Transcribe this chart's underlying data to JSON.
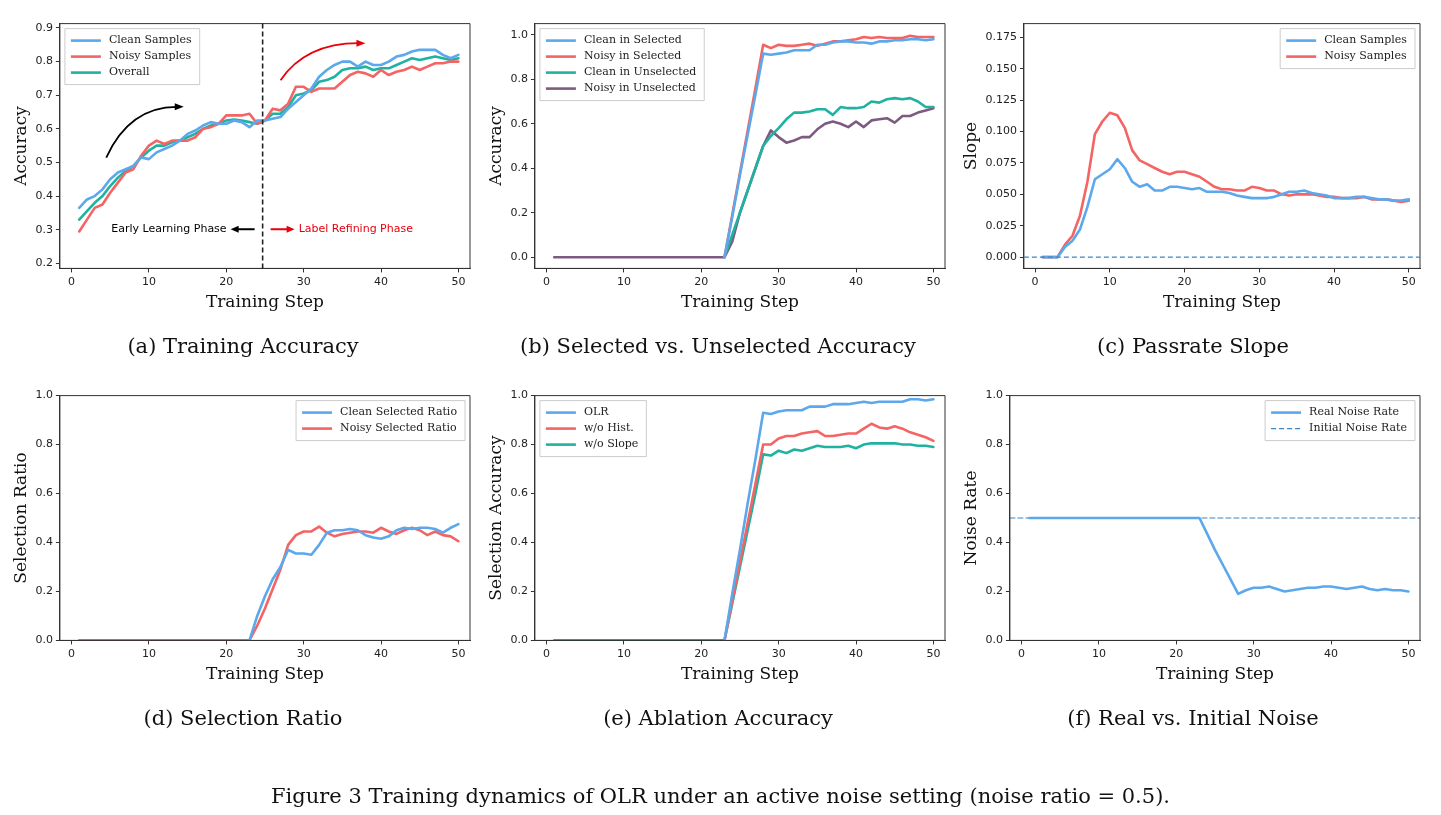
{
  "chart_data": [
    {
      "type": "line",
      "title": "(a) Training Accuracy",
      "xlabel": "Training Step",
      "ylabel": "Accuracy",
      "x": [
        1,
        2,
        3,
        4,
        5,
        6,
        7,
        8,
        9,
        10,
        11,
        12,
        13,
        14,
        15,
        16,
        17,
        18,
        19,
        20,
        21,
        22,
        23,
        24,
        25,
        26,
        27,
        28,
        29,
        30,
        31,
        32,
        33,
        34,
        35,
        36,
        37,
        38,
        39,
        40,
        41,
        42,
        43,
        44,
        45,
        46,
        47,
        48,
        49,
        50
      ],
      "xlim": [
        -1.5,
        51.5
      ],
      "xticks": [
        0,
        10,
        20,
        30,
        40,
        50
      ],
      "ylim": [
        0.185,
        0.913
      ],
      "yticks": [
        0.2,
        0.3,
        0.4,
        0.5,
        0.6,
        0.7,
        0.8,
        0.9
      ],
      "grid": false,
      "legend": "top left",
      "marker": "none",
      "line_style": "solid",
      "series": [
        {
          "name": "Clean Samples",
          "color": "#5ba8ec",
          "values": [
            0.365,
            0.39,
            0.4,
            0.42,
            0.45,
            0.47,
            0.48,
            0.49,
            0.515,
            0.51,
            0.53,
            0.54,
            0.55,
            0.565,
            0.585,
            0.595,
            0.61,
            0.62,
            0.615,
            0.615,
            0.625,
            0.62,
            0.605,
            0.625,
            0.625,
            0.63,
            0.635,
            0.66,
            0.68,
            0.7,
            0.72,
            0.755,
            0.775,
            0.79,
            0.8,
            0.8,
            0.785,
            0.8,
            0.79,
            0.79,
            0.8,
            0.815,
            0.82,
            0.83,
            0.835,
            0.835,
            0.835,
            0.82,
            0.81,
            0.82
          ]
        },
        {
          "name": "Noisy Samples",
          "color": "#f46464",
          "values": [
            0.295,
            0.33,
            0.365,
            0.375,
            0.41,
            0.44,
            0.47,
            0.48,
            0.52,
            0.55,
            0.565,
            0.555,
            0.565,
            0.565,
            0.565,
            0.575,
            0.6,
            0.605,
            0.615,
            0.64,
            0.64,
            0.64,
            0.645,
            0.615,
            0.625,
            0.66,
            0.655,
            0.675,
            0.725,
            0.725,
            0.71,
            0.72,
            0.72,
            0.72,
            0.74,
            0.76,
            0.77,
            0.765,
            0.755,
            0.775,
            0.76,
            0.77,
            0.775,
            0.785,
            0.775,
            0.785,
            0.795,
            0.795,
            0.8,
            0.8
          ]
        },
        {
          "name": "Overall",
          "color": "#20b2a0",
          "values": [
            0.33,
            0.355,
            0.38,
            0.4,
            0.43,
            0.455,
            0.475,
            0.49,
            0.515,
            0.535,
            0.55,
            0.55,
            0.56,
            0.565,
            0.575,
            0.585,
            0.6,
            0.61,
            0.615,
            0.625,
            0.628,
            0.625,
            0.62,
            0.615,
            0.625,
            0.645,
            0.645,
            0.665,
            0.7,
            0.705,
            0.715,
            0.74,
            0.745,
            0.755,
            0.775,
            0.78,
            0.78,
            0.785,
            0.775,
            0.78,
            0.78,
            0.79,
            0.8,
            0.81,
            0.805,
            0.81,
            0.815,
            0.81,
            0.805,
            0.81
          ]
        }
      ],
      "ref_lines": [
        {
          "axis": "x",
          "value": 24.7,
          "color": "#222222",
          "line_style": "dashed"
        }
      ],
      "annotations": [
        "Early Learning Phase",
        "Label Refining Phase"
      ]
    },
    {
      "type": "line",
      "title": "(b) Selected vs. Unselected Accuracy",
      "xlabel": "Training Step",
      "ylabel": "Accuracy",
      "x": [
        1,
        2,
        3,
        4,
        5,
        6,
        7,
        8,
        9,
        10,
        11,
        12,
        13,
        14,
        15,
        16,
        17,
        18,
        19,
        20,
        21,
        22,
        23,
        24,
        25,
        26,
        27,
        28,
        29,
        30,
        31,
        32,
        33,
        34,
        35,
        36,
        37,
        38,
        39,
        40,
        41,
        42,
        43,
        44,
        45,
        46,
        47,
        48,
        49,
        50
      ],
      "xlim": [
        -1.5,
        51.5
      ],
      "xticks": [
        0,
        10,
        20,
        30,
        40,
        50
      ],
      "ylim": [
        -0.05,
        1.05
      ],
      "yticks": [
        {
          "value": 0,
          "label": "0.0"
        },
        0.2,
        0.4,
        0.6,
        0.8,
        {
          "value": 1,
          "label": "1.0"
        }
      ],
      "grid": false,
      "legend": "top left",
      "marker": "none",
      "line_style": "solid",
      "series": [
        {
          "name": "Clean in Selected",
          "color": "#5ba8ec",
          "values": [
            null,
            null,
            null,
            null,
            null,
            null,
            null,
            null,
            null,
            null,
            null,
            null,
            null,
            null,
            null,
            null,
            null,
            null,
            null,
            null,
            null,
            null,
            0,
            0.18,
            0.37,
            0.55,
            0.73,
            0.915,
            0.91,
            0.915,
            0.92,
            0.93,
            0.93,
            0.93,
            0.955,
            0.955,
            0.965,
            0.97,
            0.97,
            0.965,
            0.965,
            0.96,
            0.97,
            0.97,
            0.975,
            0.975,
            0.98,
            0.98,
            0.975,
            0.98
          ]
        },
        {
          "name": "Noisy in Selected",
          "color": "#f46464",
          "values": [
            null,
            null,
            null,
            null,
            null,
            null,
            null,
            null,
            null,
            null,
            null,
            null,
            null,
            null,
            null,
            null,
            null,
            null,
            null,
            null,
            null,
            null,
            0,
            0.19,
            0.38,
            0.57,
            0.76,
            0.955,
            0.94,
            0.955,
            0.95,
            0.95,
            0.955,
            0.96,
            0.95,
            0.96,
            0.97,
            0.97,
            0.975,
            0.98,
            0.99,
            0.985,
            0.99,
            0.985,
            0.985,
            0.985,
            0.995,
            0.99,
            0.99,
            0.99
          ]
        },
        {
          "name": "Clean in Unselected",
          "color": "#20b2a0",
          "values": [
            null,
            null,
            null,
            null,
            null,
            null,
            null,
            null,
            null,
            null,
            null,
            null,
            null,
            null,
            null,
            null,
            null,
            null,
            null,
            null,
            null,
            null,
            0,
            0.1,
            0.2,
            0.3,
            0.4,
            0.5,
            0.545,
            0.58,
            0.62,
            0.65,
            0.65,
            0.655,
            0.665,
            0.665,
            0.64,
            0.675,
            0.67,
            0.67,
            0.675,
            0.7,
            0.695,
            0.71,
            0.715,
            0.71,
            0.715,
            0.7,
            0.675,
            0.675
          ]
        },
        {
          "name": "Noisy in Unselected",
          "color": "#7d5a80",
          "values": [
            0,
            0,
            0,
            0,
            0,
            0,
            0,
            0,
            0,
            0,
            0,
            0,
            0,
            0,
            0,
            0,
            0,
            0,
            0,
            0,
            0,
            0,
            0,
            0.07,
            0.2,
            0.3,
            0.4,
            0.5,
            0.57,
            0.54,
            0.515,
            0.525,
            0.54,
            0.54,
            0.575,
            0.6,
            0.61,
            0.6,
            0.585,
            0.61,
            0.585,
            0.615,
            0.62,
            0.625,
            0.605,
            0.635,
            0.635,
            0.65,
            0.66,
            0.67
          ]
        }
      ]
    },
    {
      "type": "line",
      "title": "(c) Passrate Slope",
      "xlabel": "Training Step",
      "ylabel": "Slope",
      "x": [
        1,
        2,
        3,
        4,
        5,
        6,
        7,
        8,
        9,
        10,
        11,
        12,
        13,
        14,
        15,
        16,
        17,
        18,
        19,
        20,
        21,
        22,
        23,
        24,
        25,
        26,
        27,
        28,
        29,
        30,
        31,
        32,
        33,
        34,
        35,
        36,
        37,
        38,
        39,
        40,
        41,
        42,
        43,
        44,
        45,
        46,
        47,
        48,
        49,
        50
      ],
      "xlim": [
        -1.5,
        51.5
      ],
      "xticks": [
        0,
        10,
        20,
        30,
        40,
        50
      ],
      "ylim": [
        -0.009,
        0.186
      ],
      "yticks": [
        {
          "value": 0,
          "label": "0.000"
        },
        {
          "value": 0.025,
          "label": "0.025"
        },
        {
          "value": 0.05,
          "label": "0.050"
        },
        {
          "value": 0.075,
          "label": "0.075"
        },
        {
          "value": 0.1,
          "label": "0.100"
        },
        {
          "value": 0.125,
          "label": "0.125"
        },
        {
          "value": 0.15,
          "label": "0.150"
        },
        {
          "value": 0.175,
          "label": "0.175"
        }
      ],
      "grid": false,
      "legend": "top right",
      "marker": "none",
      "line_style": "solid",
      "series": [
        {
          "name": "Clean Samples",
          "color": "#5ba8ec",
          "values": [
            0,
            0,
            0,
            0.008,
            0.013,
            0.022,
            0.04,
            0.062,
            0.066,
            0.07,
            0.078,
            0.071,
            0.06,
            0.056,
            0.058,
            0.053,
            0.053,
            0.056,
            0.056,
            0.055,
            0.054,
            0.055,
            0.052,
            0.052,
            0.052,
            0.051,
            0.049,
            0.048,
            0.047,
            0.047,
            0.047,
            0.048,
            0.05,
            0.052,
            0.052,
            0.053,
            0.051,
            0.05,
            0.049,
            0.047,
            0.047,
            0.047,
            0.048,
            0.048,
            0.047,
            0.046,
            0.046,
            0.045,
            0.045,
            0.046
          ]
        },
        {
          "name": "Noisy Samples",
          "color": "#f46464",
          "values": [
            0,
            0,
            0,
            0.01,
            0.017,
            0.033,
            0.06,
            0.098,
            0.108,
            0.115,
            0.113,
            0.103,
            0.085,
            0.077,
            0.074,
            0.071,
            0.068,
            0.066,
            0.068,
            0.068,
            0.066,
            0.064,
            0.06,
            0.056,
            0.054,
            0.054,
            0.053,
            0.053,
            0.056,
            0.055,
            0.053,
            0.053,
            0.05,
            0.049,
            0.05,
            0.05,
            0.05,
            0.049,
            0.048,
            0.048,
            0.047,
            0.047,
            0.047,
            0.048,
            0.046,
            0.046,
            0.046,
            0.045,
            0.044,
            0.045
          ]
        }
      ],
      "ref_lines": [
        {
          "axis": "y",
          "value": 0,
          "color": "#3d85c6",
          "line_style": "dashed"
        }
      ]
    },
    {
      "type": "line",
      "title": "(d) Selection Ratio",
      "xlabel": "Training Step",
      "ylabel": "Selection Ratio",
      "x": [
        1,
        2,
        3,
        4,
        5,
        6,
        7,
        8,
        9,
        10,
        11,
        12,
        13,
        14,
        15,
        16,
        17,
        18,
        19,
        20,
        21,
        22,
        23,
        24,
        25,
        26,
        27,
        28,
        29,
        30,
        31,
        32,
        33,
        34,
        35,
        36,
        37,
        38,
        39,
        40,
        41,
        42,
        43,
        44,
        45,
        46,
        47,
        48,
        49,
        50
      ],
      "xlim": [
        -1.5,
        51.5
      ],
      "xticks": [
        0,
        10,
        20,
        30,
        40,
        50
      ],
      "ylim": [
        0,
        1
      ],
      "yticks": [
        {
          "value": 0,
          "label": "0.0"
        },
        0.2,
        0.4,
        0.6,
        0.8,
        {
          "value": 1,
          "label": "1.0"
        }
      ],
      "grid": false,
      "legend": "top right",
      "marker": "none",
      "line_style": "solid",
      "series": [
        {
          "name": "Clean Selected Ratio",
          "color": "#5ba8ec",
          "values": [
            null,
            null,
            null,
            null,
            null,
            null,
            null,
            null,
            null,
            null,
            null,
            null,
            null,
            null,
            null,
            null,
            null,
            null,
            null,
            null,
            null,
            null,
            0,
            0.1,
            0.18,
            0.25,
            0.3,
            0.37,
            0.355,
            0.355,
            0.35,
            0.39,
            0.44,
            0.45,
            0.45,
            0.455,
            0.45,
            0.43,
            0.42,
            0.415,
            0.425,
            0.45,
            0.46,
            0.455,
            0.46,
            0.46,
            0.455,
            0.44,
            0.46,
            0.475
          ]
        },
        {
          "name": "Noisy Selected Ratio",
          "color": "#f46464",
          "values": [
            0,
            0,
            0,
            0,
            0,
            0,
            0,
            0,
            0,
            0,
            0,
            0,
            0,
            0,
            0,
            0,
            0,
            0,
            0,
            0,
            0,
            0,
            0,
            0.06,
            0.13,
            0.21,
            0.29,
            0.39,
            0.43,
            0.445,
            0.445,
            0.465,
            0.44,
            0.425,
            0.435,
            0.44,
            0.445,
            0.445,
            0.44,
            0.46,
            0.445,
            0.435,
            0.45,
            0.46,
            0.45,
            0.43,
            0.445,
            0.43,
            0.425,
            0.405
          ]
        }
      ]
    },
    {
      "type": "line",
      "title": "(e) Ablation Accuracy",
      "xlabel": "Training Step",
      "ylabel": "Selection Accuracy",
      "x": [
        1,
        2,
        3,
        4,
        5,
        6,
        7,
        8,
        9,
        10,
        11,
        12,
        13,
        14,
        15,
        16,
        17,
        18,
        19,
        20,
        21,
        22,
        23,
        24,
        25,
        26,
        27,
        28,
        29,
        30,
        31,
        32,
        33,
        34,
        35,
        36,
        37,
        38,
        39,
        40,
        41,
        42,
        43,
        44,
        45,
        46,
        47,
        48,
        49,
        50
      ],
      "xlim": [
        -1.5,
        51.5
      ],
      "xticks": [
        0,
        10,
        20,
        30,
        40,
        50
      ],
      "ylim": [
        0,
        1
      ],
      "yticks": [
        {
          "value": 0,
          "label": "0.0"
        },
        0.2,
        0.4,
        0.6,
        0.8,
        {
          "value": 1,
          "label": "1.0"
        }
      ],
      "grid": false,
      "legend": "top left",
      "marker": "none",
      "line_style": "solid",
      "series": [
        {
          "name": "OLR",
          "color": "#5ba8ec",
          "values": [
            null,
            null,
            null,
            null,
            null,
            null,
            null,
            null,
            null,
            null,
            null,
            null,
            null,
            null,
            null,
            null,
            null,
            null,
            null,
            null,
            null,
            null,
            0,
            0.19,
            0.37,
            0.56,
            0.74,
            0.93,
            0.925,
            0.935,
            0.94,
            0.94,
            0.94,
            0.955,
            0.955,
            0.955,
            0.965,
            0.965,
            0.965,
            0.97,
            0.975,
            0.97,
            0.975,
            0.975,
            0.975,
            0.975,
            0.985,
            0.985,
            0.98,
            0.985
          ]
        },
        {
          "name": "w/o Hist.",
          "color": "#f46464",
          "values": [
            null,
            null,
            null,
            null,
            null,
            null,
            null,
            null,
            null,
            null,
            null,
            null,
            null,
            null,
            null,
            null,
            null,
            null,
            null,
            null,
            null,
            null,
            0,
            0.16,
            0.32,
            0.48,
            0.64,
            0.8,
            0.8,
            0.825,
            0.835,
            0.835,
            0.845,
            0.85,
            0.855,
            0.835,
            0.835,
            0.84,
            0.845,
            0.845,
            0.865,
            0.885,
            0.87,
            0.865,
            0.875,
            0.865,
            0.85,
            0.84,
            0.83,
            0.815
          ]
        },
        {
          "name": "w/o Slope",
          "color": "#20b2a0",
          "values": [
            0,
            0,
            0,
            0,
            0,
            0,
            0,
            0,
            0,
            0,
            0,
            0,
            0,
            0,
            0,
            0,
            0,
            0,
            0,
            0,
            0,
            0,
            0,
            0.15,
            0.3,
            0.45,
            0.6,
            0.76,
            0.755,
            0.775,
            0.765,
            0.78,
            0.775,
            0.785,
            0.795,
            0.79,
            0.79,
            0.79,
            0.795,
            0.785,
            0.8,
            0.805,
            0.805,
            0.805,
            0.805,
            0.8,
            0.8,
            0.795,
            0.795,
            0.79
          ]
        }
      ]
    },
    {
      "type": "line",
      "title": "(f) Real vs. Initial Noise",
      "xlabel": "Training Step",
      "ylabel": "Noise Rate",
      "x": [
        1,
        2,
        3,
        4,
        5,
        6,
        7,
        8,
        9,
        10,
        11,
        12,
        13,
        14,
        15,
        16,
        17,
        18,
        19,
        20,
        21,
        22,
        23,
        24,
        25,
        26,
        27,
        28,
        29,
        30,
        31,
        32,
        33,
        34,
        35,
        36,
        37,
        38,
        39,
        40,
        41,
        42,
        43,
        44,
        45,
        46,
        47,
        48,
        49,
        50
      ],
      "xlim": [
        -1.5,
        51.5
      ],
      "xticks": [
        0,
        10,
        20,
        30,
        40,
        50
      ],
      "ylim": [
        0,
        1
      ],
      "yticks": [
        {
          "value": 0,
          "label": "0.0"
        },
        0.2,
        0.4,
        0.6,
        0.8,
        {
          "value": 1,
          "label": "1.0"
        }
      ],
      "grid": false,
      "legend": "top right",
      "marker": "none",
      "line_style": "solid",
      "series": [
        {
          "name": "Real Noise Rate",
          "color": "#5ba8ec",
          "values": [
            0.5,
            0.5,
            0.5,
            0.5,
            0.5,
            0.5,
            0.5,
            0.5,
            0.5,
            0.5,
            0.5,
            0.5,
            0.5,
            0.5,
            0.5,
            0.5,
            0.5,
            0.5,
            0.5,
            0.5,
            0.5,
            0.5,
            0.5,
            0.435,
            0.37,
            0.31,
            0.25,
            0.19,
            0.205,
            0.215,
            0.215,
            0.22,
            0.21,
            0.2,
            0.205,
            0.21,
            0.215,
            0.215,
            0.22,
            0.22,
            0.215,
            0.21,
            0.215,
            0.22,
            0.21,
            0.205,
            0.21,
            0.205,
            0.205,
            0.2
          ]
        },
        {
          "name": "Initial Noise Rate",
          "color": "#3d85c6",
          "line_style": "dashed",
          "x": [
            -1.5,
            51.5
          ],
          "values": [
            0.5,
            0.5
          ]
        }
      ]
    },
    {
      "type": "other",
      "title": "Figure 3 Training dynamics of OLR under an active noise setting (noise ratio = 0.5)."
    }
  ]
}
